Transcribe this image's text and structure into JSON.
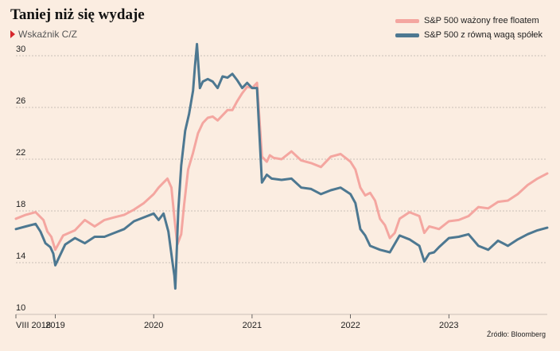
{
  "header": {
    "title": "Taniej niż się wydaje",
    "subtitle": "Wskaźnik C/Z"
  },
  "source": "Źródło: Bloomberg",
  "colors": {
    "background": "#fbede1",
    "cap_weighted": "#f4a6a0",
    "equal_weighted": "#4d7891",
    "grid": "#bbb1a8",
    "accent": "#d6262c"
  },
  "chart_data": {
    "type": "line",
    "title": "Taniej niż się wydaje",
    "subtitle": "Wskaźnik C/Z",
    "xlabel": "",
    "ylabel": "",
    "xlim": [
      2018.6,
      2024.0
    ],
    "ylim": [
      10,
      30
    ],
    "yticks": [
      10,
      14,
      18,
      22,
      26,
      30
    ],
    "xticks": [
      {
        "value": 2018.6,
        "label": "VIII 2018"
      },
      {
        "value": 2019.0,
        "label": "2019"
      },
      {
        "value": 2020.0,
        "label": "2020"
      },
      {
        "value": 2021.0,
        "label": "2021"
      },
      {
        "value": 2022.0,
        "label": "2022"
      },
      {
        "value": 2023.0,
        "label": "2023"
      }
    ],
    "grid": true,
    "legend_position": "top-right",
    "series": [
      {
        "name": "S&P 500 ważony free floatem",
        "color": "#f4a6a0",
        "x": [
          2018.6,
          2018.7,
          2018.8,
          2018.88,
          2018.92,
          2018.96,
          2019.0,
          2019.08,
          2019.2,
          2019.3,
          2019.4,
          2019.5,
          2019.6,
          2019.7,
          2019.8,
          2019.9,
          2020.0,
          2020.05,
          2020.1,
          2020.14,
          2020.18,
          2020.21,
          2020.24,
          2020.28,
          2020.31,
          2020.35,
          2020.4,
          2020.45,
          2020.5,
          2020.55,
          2020.6,
          2020.65,
          2020.7,
          2020.75,
          2020.8,
          2020.85,
          2020.9,
          2020.95,
          2021.0,
          2021.05,
          2021.1,
          2021.15,
          2021.18,
          2021.22,
          2021.3,
          2021.4,
          2021.5,
          2021.6,
          2021.7,
          2021.8,
          2021.9,
          2022.0,
          2022.05,
          2022.1,
          2022.15,
          2022.2,
          2022.25,
          2022.3,
          2022.35,
          2022.4,
          2022.45,
          2022.5,
          2022.6,
          2022.7,
          2022.75,
          2022.8,
          2022.85,
          2022.9,
          2023.0,
          2023.1,
          2023.2,
          2023.3,
          2023.4,
          2023.5,
          2023.6,
          2023.7,
          2023.8,
          2023.9,
          2024.0
        ],
        "values": [
          17.4,
          17.7,
          17.9,
          17.3,
          16.4,
          16.0,
          15.0,
          16.1,
          16.5,
          17.3,
          16.8,
          17.3,
          17.5,
          17.7,
          18.1,
          18.6,
          19.3,
          19.8,
          20.2,
          20.5,
          19.8,
          17.5,
          15.4,
          16.2,
          18.5,
          21.2,
          22.5,
          24.0,
          24.8,
          25.2,
          25.3,
          25.0,
          25.4,
          25.8,
          25.8,
          26.5,
          27.1,
          27.6,
          27.5,
          27.9,
          22.2,
          21.8,
          22.3,
          22.1,
          22.0,
          22.6,
          21.9,
          21.7,
          21.4,
          22.2,
          22.4,
          21.8,
          21.2,
          19.8,
          19.2,
          19.4,
          18.8,
          17.4,
          16.9,
          15.9,
          16.3,
          17.4,
          17.9,
          17.6,
          16.3,
          16.8,
          16.7,
          16.6,
          17.2,
          17.3,
          17.6,
          18.3,
          18.2,
          18.7,
          18.8,
          19.3,
          20.0,
          20.5,
          20.9
        ]
      },
      {
        "name": "S&P 500 z równą wagą spółek",
        "color": "#4d7891",
        "x": [
          2018.6,
          2018.7,
          2018.8,
          2018.85,
          2018.9,
          2018.95,
          2018.98,
          2019.0,
          2019.1,
          2019.2,
          2019.3,
          2019.4,
          2019.5,
          2019.6,
          2019.7,
          2019.8,
          2019.9,
          2020.0,
          2020.05,
          2020.1,
          2020.15,
          2020.19,
          2020.21,
          2020.22,
          2020.25,
          2020.28,
          2020.32,
          2020.36,
          2020.4,
          2020.42,
          2020.44,
          2020.47,
          2020.5,
          2020.55,
          2020.6,
          2020.65,
          2020.7,
          2020.75,
          2020.8,
          2020.85,
          2020.9,
          2020.95,
          2021.0,
          2021.05,
          2021.1,
          2021.15,
          2021.2,
          2021.3,
          2021.4,
          2021.5,
          2021.6,
          2021.7,
          2021.8,
          2021.9,
          2022.0,
          2022.05,
          2022.1,
          2022.15,
          2022.2,
          2022.3,
          2022.4,
          2022.5,
          2022.6,
          2022.7,
          2022.75,
          2022.8,
          2022.85,
          2022.9,
          2023.0,
          2023.1,
          2023.2,
          2023.3,
          2023.4,
          2023.5,
          2023.6,
          2023.7,
          2023.8,
          2023.9,
          2024.0
        ],
        "values": [
          16.6,
          16.8,
          17.0,
          16.4,
          15.5,
          15.2,
          14.7,
          13.8,
          15.4,
          15.9,
          15.5,
          16.0,
          16.0,
          16.3,
          16.6,
          17.2,
          17.5,
          17.8,
          17.3,
          17.8,
          16.4,
          14.1,
          13.0,
          12.0,
          18.0,
          21.5,
          24.2,
          25.5,
          27.3,
          29.2,
          30.9,
          27.5,
          28.0,
          28.2,
          28.0,
          27.5,
          28.4,
          28.3,
          28.6,
          28.1,
          27.5,
          27.9,
          27.5,
          27.5,
          20.2,
          20.8,
          20.5,
          20.4,
          20.5,
          19.8,
          19.7,
          19.3,
          19.6,
          19.8,
          19.3,
          18.6,
          16.6,
          16.1,
          15.3,
          15.0,
          14.8,
          16.1,
          15.8,
          15.3,
          14.1,
          14.7,
          14.8,
          15.2,
          15.9,
          16.0,
          16.2,
          15.3,
          15.0,
          15.7,
          15.3,
          15.8,
          16.2,
          16.5,
          16.7
        ]
      }
    ]
  }
}
